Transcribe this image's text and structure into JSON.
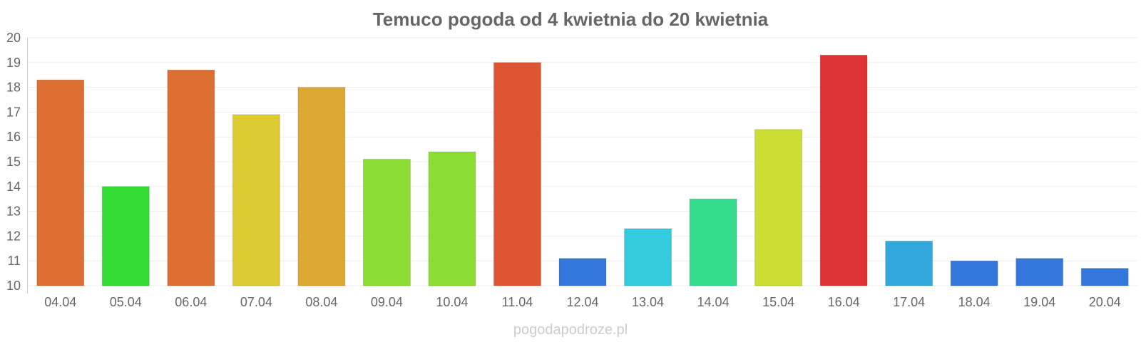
{
  "chart_data": {
    "type": "bar",
    "title": "Temuco pogoda od 4 kwietnia do 20 kwietnia",
    "xlabel": "",
    "ylabel": "",
    "ylim": [
      10,
      20
    ],
    "yticks": [
      10,
      11,
      12,
      13,
      14,
      15,
      16,
      17,
      18,
      19,
      20
    ],
    "grid": true,
    "categories": [
      "04.04",
      "05.04",
      "06.04",
      "07.04",
      "08.04",
      "09.04",
      "10.04",
      "11.04",
      "12.04",
      "13.04",
      "14.04",
      "15.04",
      "16.04",
      "17.04",
      "18.04",
      "19.04",
      "20.04"
    ],
    "values": [
      18.3,
      14.0,
      18.7,
      16.9,
      18.0,
      15.1,
      15.4,
      19.0,
      11.1,
      12.3,
      13.5,
      16.3,
      19.3,
      11.8,
      11.0,
      11.1,
      10.7
    ],
    "colors": [
      "#de6f33",
      "#33dd33",
      "#de6f33",
      "#dccb33",
      "#dca833",
      "#8cdd33",
      "#8cdd33",
      "#dd5533",
      "#3377dd",
      "#33cbdd",
      "#33dd8c",
      "#ccdd33",
      "#dd3333",
      "#33a8dd",
      "#3377dd",
      "#3377dd",
      "#3377dd"
    ]
  },
  "watermark": "pogodapodroze.pl"
}
